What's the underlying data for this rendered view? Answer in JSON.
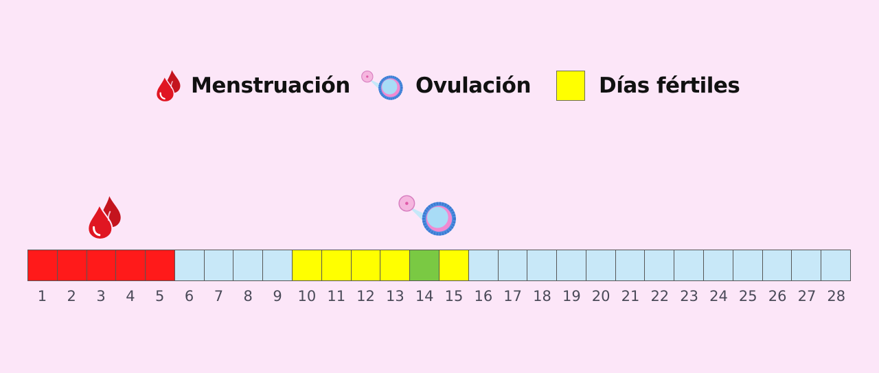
{
  "legend": {
    "menstruation": {
      "label": "Menstruación",
      "icon": "blood-drop-icon"
    },
    "ovulation": {
      "label": "Ovulación",
      "icon": "ovum-icon"
    },
    "fertile": {
      "label": "Días fértiles",
      "color": "#ffff00"
    }
  },
  "colors": {
    "background": "#fce6f8",
    "menstruation": "#ff1a1a",
    "normal": "#c8e8f8",
    "fertile": "#ffff00",
    "ovulation": "#7ac943",
    "drop": "#d8101c"
  },
  "cycle": {
    "days": [
      "1",
      "2",
      "3",
      "4",
      "5",
      "6",
      "7",
      "8",
      "9",
      "10",
      "11",
      "12",
      "13",
      "14",
      "15",
      "16",
      "17",
      "18",
      "19",
      "20",
      "21",
      "22",
      "23",
      "24",
      "25",
      "26",
      "27",
      "28"
    ],
    "types": [
      "menstruation",
      "menstruation",
      "menstruation",
      "menstruation",
      "menstruation",
      "normal",
      "normal",
      "normal",
      "normal",
      "fertile",
      "fertile",
      "fertile",
      "fertile",
      "ovulation",
      "fertile",
      "normal",
      "normal",
      "normal",
      "normal",
      "normal",
      "normal",
      "normal",
      "normal",
      "normal",
      "normal",
      "normal",
      "normal",
      "normal"
    ]
  }
}
